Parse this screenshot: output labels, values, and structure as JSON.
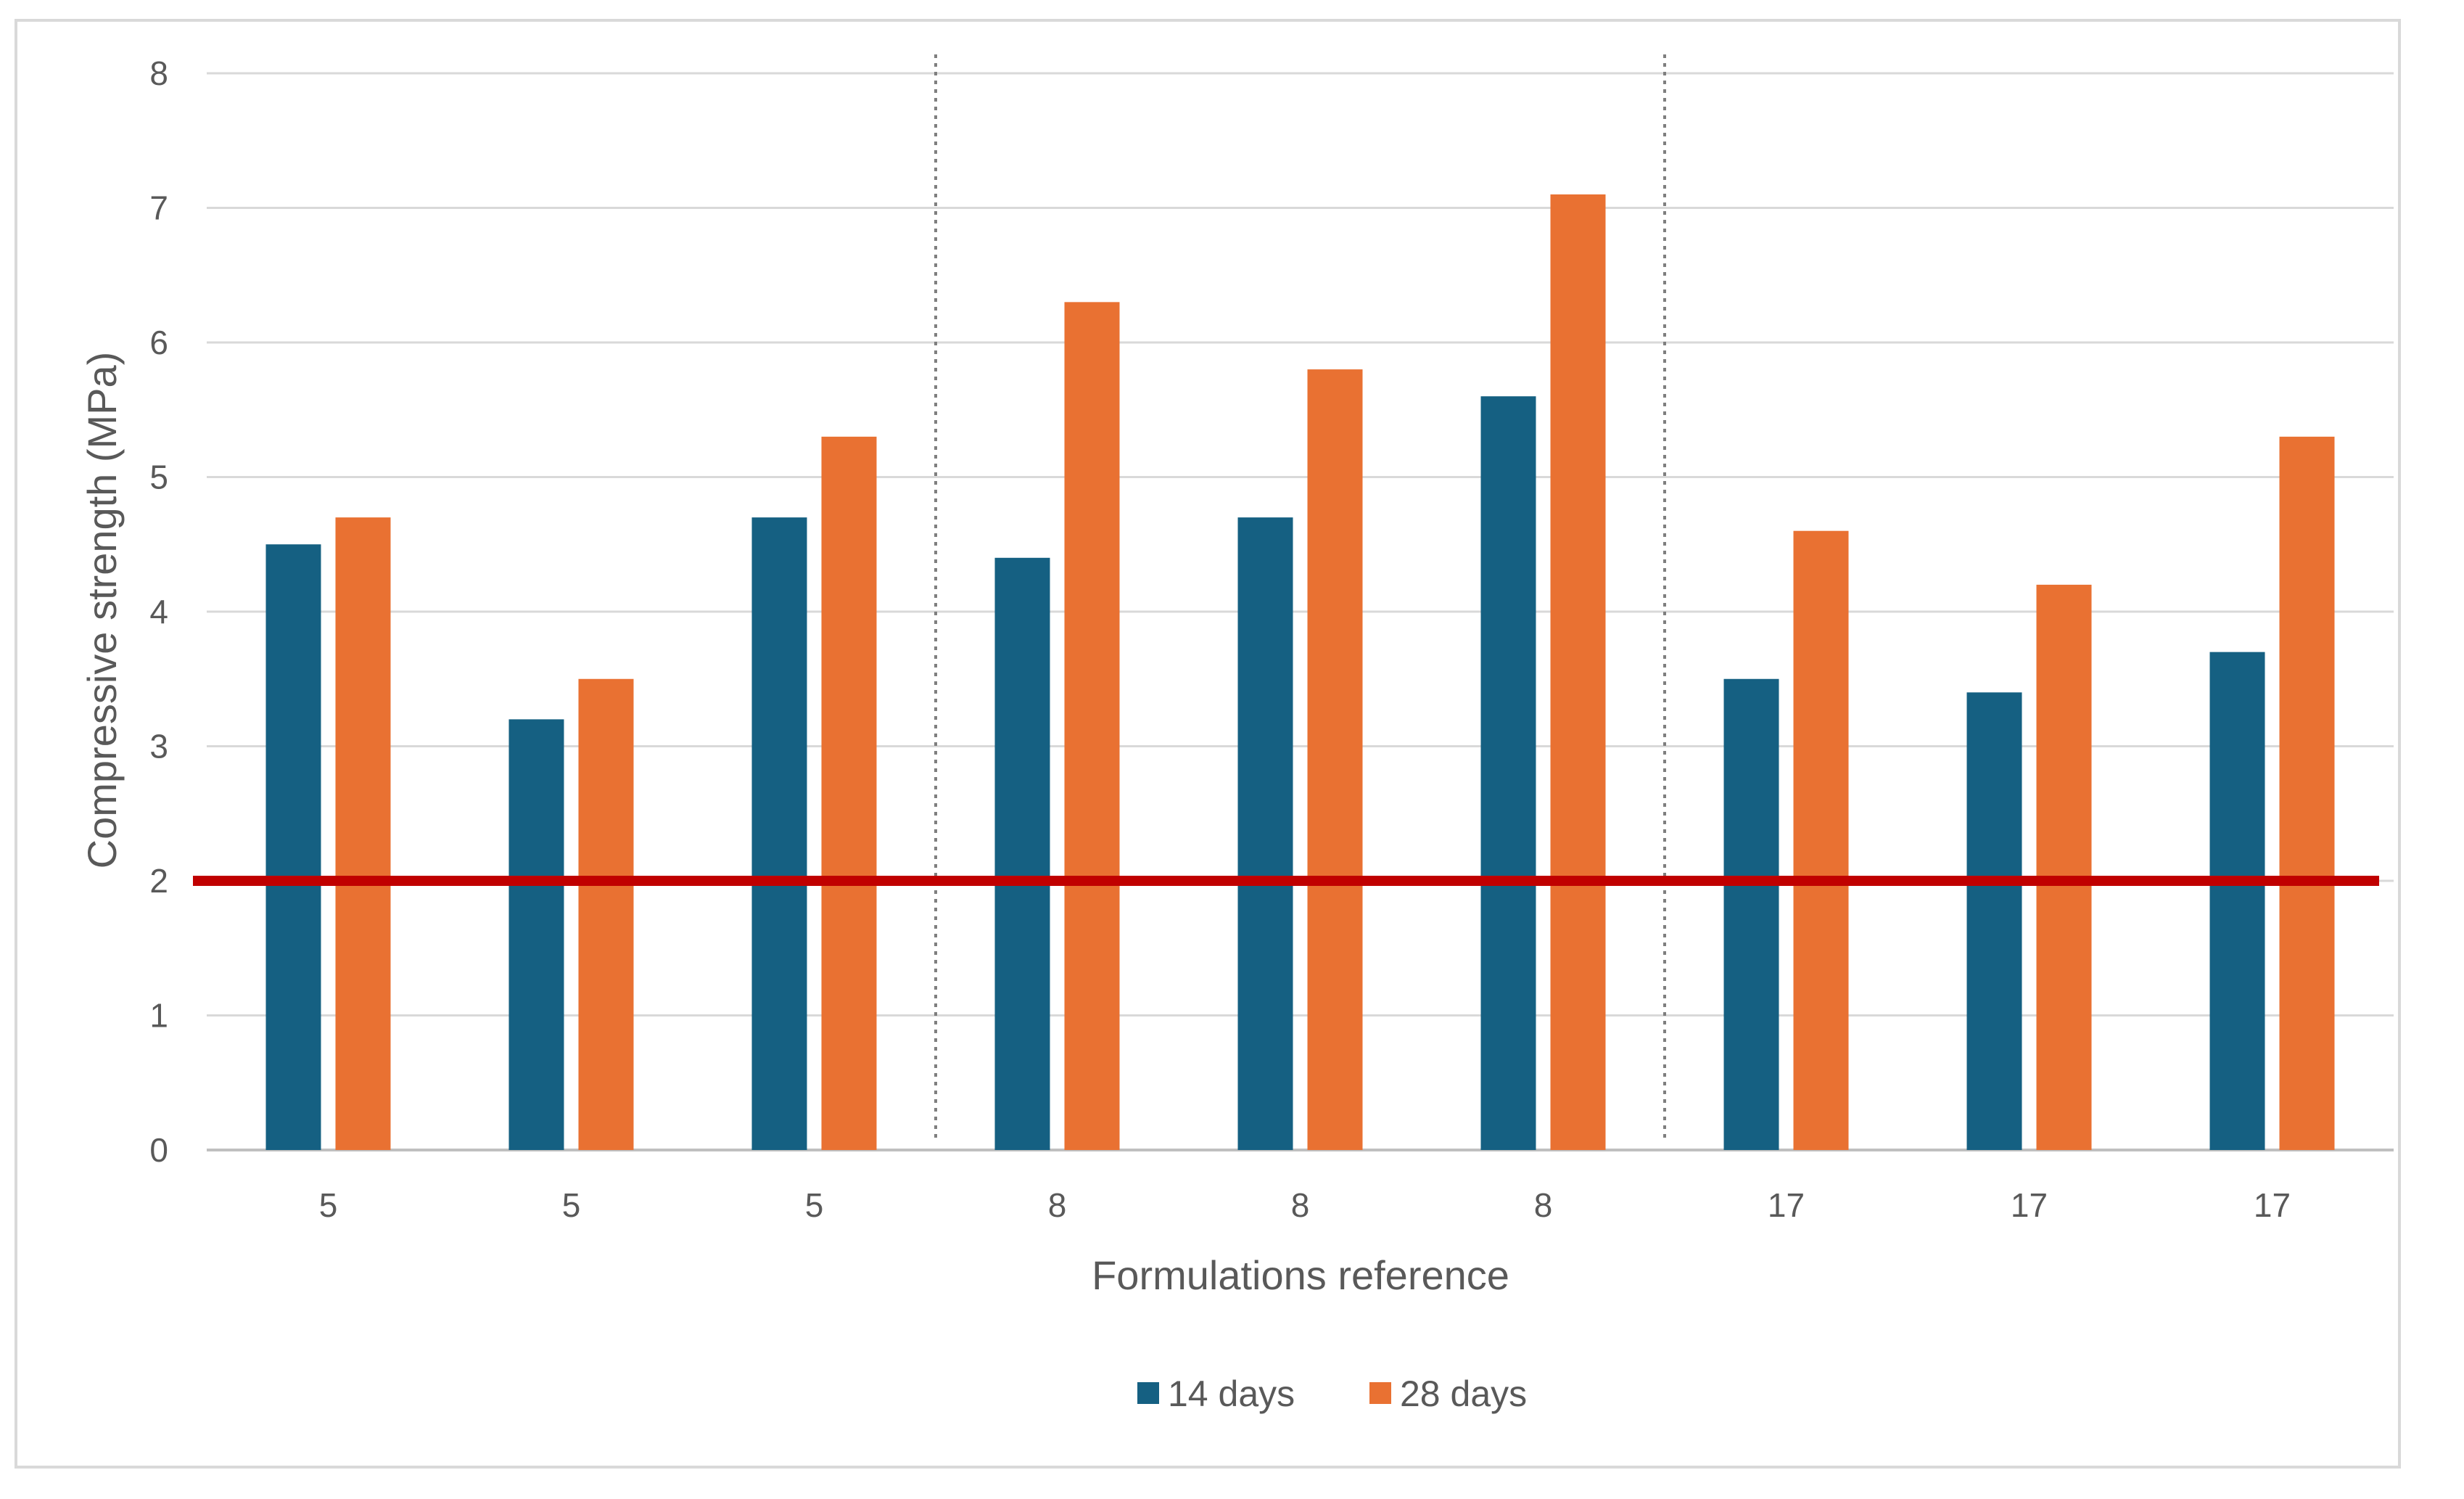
{
  "chart_data": {
    "type": "bar",
    "title": "",
    "xlabel": "Formulations reference",
    "ylabel": "Compressive strength (MPa)",
    "ylim": [
      0,
      8
    ],
    "yticks": [
      "0",
      "1",
      "2",
      "3",
      "4",
      "5",
      "6",
      "7",
      "8"
    ],
    "categories": [
      "5",
      "5",
      "5",
      "8",
      "8",
      "8",
      "17",
      "17",
      "17"
    ],
    "series": [
      {
        "name": "14 days",
        "color": "#156082",
        "values": [
          4.5,
          3.2,
          4.7,
          4.4,
          4.7,
          5.6,
          3.5,
          3.4,
          3.7
        ]
      },
      {
        "name": "28 days",
        "color": "#E97132",
        "values": [
          4.7,
          3.5,
          5.3,
          6.3,
          5.8,
          7.1,
          4.6,
          4.2,
          5.3
        ]
      }
    ],
    "reference_line": {
      "value": 2,
      "color": "#C00000"
    },
    "group_separators_after_category_index": [
      2,
      5
    ],
    "grid": true,
    "legend_position": "bottom"
  }
}
